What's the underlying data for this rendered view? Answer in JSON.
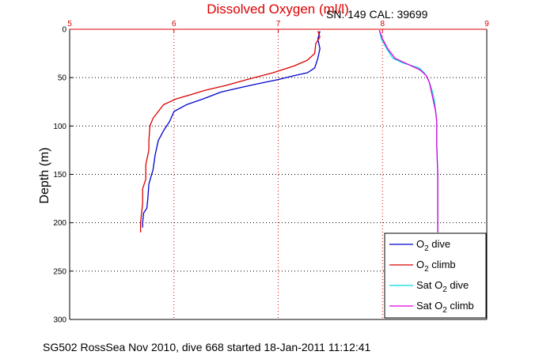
{
  "chart_data": {
    "type": "line",
    "title": "Dissolved Oxygen (ml/l)",
    "subtitle": "SN: 149  CAL: 39699",
    "xlabel": "",
    "ylabel": "Depth (m)",
    "footer": "SG502 RossSea Nov 2010, dive 668 started 18-Jan-2011 11:12:41",
    "xlim": [
      5,
      9
    ],
    "ylim": [
      0,
      300
    ],
    "y_reversed": true,
    "x_axis_position": "top",
    "xticks": [
      "5",
      "6",
      "7",
      "8",
      "9"
    ],
    "yticks": [
      "0",
      "50",
      "100",
      "150",
      "200",
      "250",
      "300"
    ],
    "grid": true,
    "legend_position": "bottom-right",
    "legend": [
      {
        "prefix": "O",
        "sub": "2",
        "suffix": " dive"
      },
      {
        "prefix": "O",
        "sub": "2",
        "suffix": " climb"
      },
      {
        "prefix": "Sat O",
        "sub": "2",
        "suffix": " dive"
      },
      {
        "prefix": "Sat O",
        "sub": "2",
        "suffix": " climb"
      }
    ],
    "series": [
      {
        "name": "O2 dive",
        "color": "#0000cc",
        "points": [
          [
            7.4,
            2
          ],
          [
            7.38,
            10
          ],
          [
            7.4,
            20
          ],
          [
            7.38,
            30
          ],
          [
            7.35,
            40
          ],
          [
            7.28,
            45
          ],
          [
            7.15,
            48
          ],
          [
            7.0,
            52
          ],
          [
            6.82,
            56
          ],
          [
            6.65,
            60
          ],
          [
            6.45,
            65
          ],
          [
            6.28,
            72
          ],
          [
            6.12,
            78
          ],
          [
            6.0,
            85
          ],
          [
            5.96,
            95
          ],
          [
            5.9,
            105
          ],
          [
            5.85,
            115
          ],
          [
            5.82,
            130
          ],
          [
            5.8,
            145
          ],
          [
            5.76,
            160
          ],
          [
            5.75,
            175
          ],
          [
            5.74,
            185
          ],
          [
            5.71,
            190
          ],
          [
            5.7,
            200
          ],
          [
            5.7,
            205
          ]
        ]
      },
      {
        "name": "O2 climb",
        "color": "#dd0000",
        "points": [
          [
            7.38,
            2
          ],
          [
            7.4,
            8
          ],
          [
            7.36,
            15
          ],
          [
            7.35,
            25
          ],
          [
            7.28,
            32
          ],
          [
            7.15,
            38
          ],
          [
            6.95,
            45
          ],
          [
            6.7,
            52
          ],
          [
            6.5,
            58
          ],
          [
            6.3,
            63
          ],
          [
            6.18,
            67
          ],
          [
            6.02,
            72
          ],
          [
            5.9,
            78
          ],
          [
            5.85,
            85
          ],
          [
            5.8,
            92
          ],
          [
            5.77,
            100
          ],
          [
            5.76,
            115
          ],
          [
            5.76,
            125
          ],
          [
            5.73,
            140
          ],
          [
            5.73,
            155
          ],
          [
            5.7,
            165
          ],
          [
            5.7,
            180
          ],
          [
            5.69,
            190
          ],
          [
            5.68,
            200
          ],
          [
            5.68,
            210
          ]
        ]
      },
      {
        "name": "Sat O2 dive",
        "color": "#00dddd",
        "points": [
          [
            7.97,
            1
          ],
          [
            7.99,
            10
          ],
          [
            8.04,
            20
          ],
          [
            8.1,
            30
          ],
          [
            8.2,
            35
          ],
          [
            8.35,
            40
          ],
          [
            8.4,
            45
          ],
          [
            8.43,
            50
          ],
          [
            8.45,
            55
          ],
          [
            8.48,
            65
          ],
          [
            8.5,
            75
          ],
          [
            8.51,
            85
          ],
          [
            8.52,
            95
          ],
          [
            8.52,
            120
          ],
          [
            8.53,
            150
          ],
          [
            8.53,
            180
          ],
          [
            8.53,
            210
          ]
        ]
      },
      {
        "name": "Sat O2 climb",
        "color": "#dd00dd",
        "points": [
          [
            7.97,
            1
          ],
          [
            8.0,
            10
          ],
          [
            8.05,
            20
          ],
          [
            8.12,
            30
          ],
          [
            8.22,
            35
          ],
          [
            8.36,
            42
          ],
          [
            8.42,
            48
          ],
          [
            8.45,
            55
          ],
          [
            8.47,
            65
          ],
          [
            8.49,
            75
          ],
          [
            8.51,
            85
          ],
          [
            8.52,
            95
          ],
          [
            8.52,
            120
          ],
          [
            8.53,
            150
          ],
          [
            8.53,
            180
          ],
          [
            8.53,
            210
          ]
        ]
      }
    ]
  }
}
